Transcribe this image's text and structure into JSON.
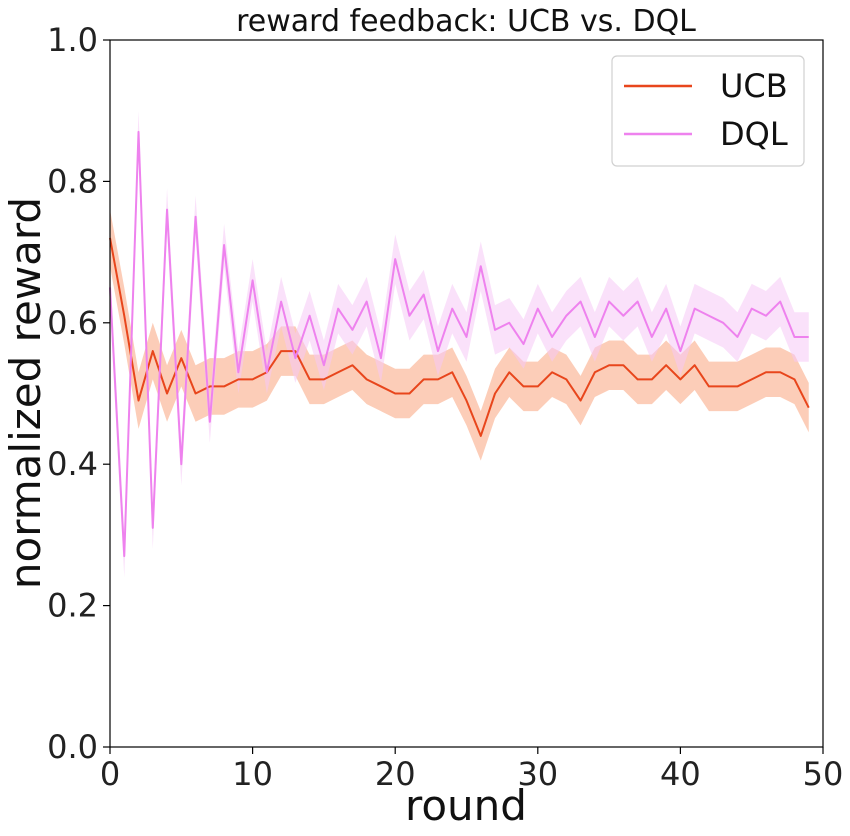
{
  "chart_data": {
    "type": "line",
    "title": "reward feedback: UCB vs. DQL",
    "xlabel": "round",
    "ylabel": "normalized reward",
    "xlim": [
      0,
      50
    ],
    "ylim": [
      0.0,
      1.0
    ],
    "xticks": [
      0,
      10,
      20,
      30,
      40,
      50
    ],
    "yticks": [
      0.0,
      0.2,
      0.4,
      0.6,
      0.8,
      1.0
    ],
    "xtick_labels": [
      "0",
      "10",
      "20",
      "30",
      "40",
      "50"
    ],
    "ytick_labels": [
      "0.0",
      "0.2",
      "0.4",
      "0.6",
      "0.8",
      "1.0"
    ],
    "grid": false,
    "legend_position": "top-right",
    "x": [
      0,
      1,
      2,
      3,
      4,
      5,
      6,
      7,
      8,
      9,
      10,
      11,
      12,
      13,
      14,
      15,
      16,
      17,
      18,
      19,
      20,
      21,
      22,
      23,
      24,
      25,
      26,
      27,
      28,
      29,
      30,
      31,
      32,
      33,
      34,
      35,
      36,
      37,
      38,
      39,
      40,
      41,
      42,
      43,
      44,
      45,
      46,
      47,
      48,
      49
    ],
    "series": [
      {
        "name": "UCB",
        "color": "#e8461c",
        "band_color": "#f9a47e",
        "values": [
          0.72,
          0.61,
          0.49,
          0.56,
          0.5,
          0.55,
          0.5,
          0.51,
          0.51,
          0.52,
          0.52,
          0.53,
          0.56,
          0.56,
          0.52,
          0.52,
          0.53,
          0.54,
          0.52,
          0.51,
          0.5,
          0.5,
          0.52,
          0.52,
          0.53,
          0.49,
          0.44,
          0.5,
          0.53,
          0.51,
          0.51,
          0.53,
          0.52,
          0.49,
          0.53,
          0.54,
          0.54,
          0.52,
          0.52,
          0.54,
          0.52,
          0.54,
          0.51,
          0.51,
          0.51,
          0.52,
          0.53,
          0.53,
          0.52,
          0.48
        ],
        "band_halfwidth": [
          0.04,
          0.04,
          0.04,
          0.04,
          0.04,
          0.04,
          0.04,
          0.04,
          0.04,
          0.04,
          0.04,
          0.04,
          0.035,
          0.035,
          0.035,
          0.035,
          0.035,
          0.035,
          0.035,
          0.035,
          0.035,
          0.035,
          0.035,
          0.035,
          0.035,
          0.035,
          0.035,
          0.035,
          0.035,
          0.035,
          0.035,
          0.035,
          0.035,
          0.035,
          0.035,
          0.035,
          0.035,
          0.035,
          0.035,
          0.035,
          0.035,
          0.035,
          0.035,
          0.035,
          0.035,
          0.035,
          0.035,
          0.035,
          0.035,
          0.035
        ]
      },
      {
        "name": "DQL",
        "color": "#ee82ee",
        "band_color": "#f6c8f6",
        "values": [
          0.65,
          0.27,
          0.87,
          0.31,
          0.76,
          0.4,
          0.75,
          0.46,
          0.71,
          0.53,
          0.66,
          0.53,
          0.63,
          0.55,
          0.61,
          0.54,
          0.62,
          0.59,
          0.63,
          0.55,
          0.69,
          0.61,
          0.64,
          0.56,
          0.62,
          0.58,
          0.68,
          0.59,
          0.6,
          0.57,
          0.62,
          0.58,
          0.61,
          0.63,
          0.58,
          0.63,
          0.61,
          0.63,
          0.58,
          0.62,
          0.56,
          0.62,
          0.61,
          0.6,
          0.58,
          0.62,
          0.61,
          0.63,
          0.58,
          0.58
        ],
        "band_halfwidth": [
          0.03,
          0.03,
          0.03,
          0.03,
          0.03,
          0.03,
          0.03,
          0.03,
          0.03,
          0.03,
          0.03,
          0.03,
          0.035,
          0.035,
          0.035,
          0.035,
          0.035,
          0.035,
          0.035,
          0.035,
          0.035,
          0.035,
          0.035,
          0.035,
          0.035,
          0.035,
          0.035,
          0.035,
          0.035,
          0.035,
          0.035,
          0.035,
          0.035,
          0.035,
          0.035,
          0.035,
          0.035,
          0.035,
          0.035,
          0.035,
          0.035,
          0.035,
          0.035,
          0.035,
          0.035,
          0.035,
          0.035,
          0.035,
          0.035,
          0.035
        ]
      }
    ]
  }
}
